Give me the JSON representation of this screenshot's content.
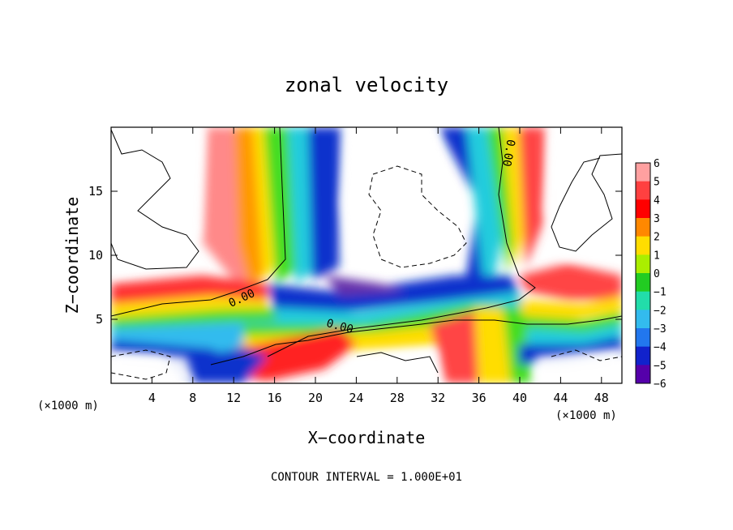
{
  "chart_data": {
    "type": "heatmap",
    "title": "zonal velocity",
    "xlabel": "X−coordinate",
    "ylabel": "Z−coordinate",
    "x_unit_left": "(×1000 m)",
    "x_unit_right": "(×1000 m)",
    "footer": "CONTOUR INTERVAL = 1.000E+01",
    "xlim": [
      0,
      50
    ],
    "ylim": [
      0,
      20
    ],
    "x_ticks": [
      4,
      8,
      12,
      16,
      20,
      24,
      28,
      32,
      36,
      40,
      44,
      48
    ],
    "y_ticks": [
      5,
      10,
      15
    ],
    "colorbar": {
      "range": [
        -6,
        6
      ],
      "labels": [
        "6",
        "5",
        "4",
        "3",
        "2",
        "1",
        "0",
        "−1",
        "−2",
        "−3",
        "−4",
        "−5",
        "−6"
      ]
    },
    "contour_labels": [
      "0.00",
      "0.00",
      "0.00"
    ]
  }
}
